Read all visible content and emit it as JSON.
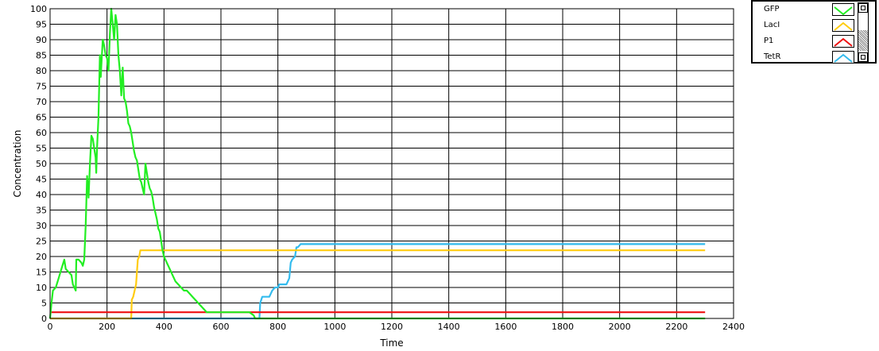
{
  "chart_data": {
    "type": "line",
    "xlabel": "Time",
    "ylabel": "Concentration",
    "xlim": [
      0,
      2400
    ],
    "ylim": [
      0,
      100
    ],
    "xticks": [
      0,
      200,
      400,
      600,
      800,
      1000,
      1200,
      1400,
      1600,
      1800,
      2000,
      2200,
      2400
    ],
    "yticks": [
      0,
      5,
      10,
      15,
      20,
      25,
      30,
      35,
      40,
      45,
      50,
      55,
      60,
      65,
      70,
      75,
      80,
      85,
      90,
      95,
      100
    ],
    "grid": true,
    "legend_position": "top-right",
    "series": [
      {
        "name": "GFP",
        "color": "#22ee22",
        "points": [
          [
            0,
            0
          ],
          [
            5,
            5
          ],
          [
            10,
            9
          ],
          [
            20,
            10
          ],
          [
            30,
            13
          ],
          [
            40,
            16
          ],
          [
            50,
            19
          ],
          [
            55,
            16
          ],
          [
            65,
            15
          ],
          [
            75,
            14
          ],
          [
            80,
            11
          ],
          [
            85,
            10
          ],
          [
            90,
            9
          ],
          [
            92,
            19
          ],
          [
            100,
            19
          ],
          [
            110,
            18
          ],
          [
            115,
            17
          ],
          [
            120,
            19
          ],
          [
            125,
            30
          ],
          [
            130,
            46
          ],
          [
            135,
            39
          ],
          [
            140,
            50
          ],
          [
            145,
            59
          ],
          [
            150,
            58
          ],
          [
            155,
            55
          ],
          [
            160,
            52
          ],
          [
            162,
            47
          ],
          [
            165,
            55
          ],
          [
            170,
            65
          ],
          [
            175,
            85
          ],
          [
            178,
            78
          ],
          [
            182,
            85
          ],
          [
            185,
            90
          ],
          [
            190,
            88
          ],
          [
            195,
            85
          ],
          [
            200,
            84
          ],
          [
            205,
            80
          ],
          [
            210,
            92
          ],
          [
            215,
            100
          ],
          [
            220,
            95
          ],
          [
            225,
            90
          ],
          [
            230,
            98
          ],
          [
            235,
            95
          ],
          [
            240,
            85
          ],
          [
            245,
            80
          ],
          [
            250,
            72
          ],
          [
            255,
            81
          ],
          [
            258,
            75
          ],
          [
            260,
            71
          ],
          [
            265,
            70
          ],
          [
            270,
            67
          ],
          [
            275,
            63
          ],
          [
            280,
            62
          ],
          [
            285,
            60
          ],
          [
            290,
            57
          ],
          [
            295,
            54
          ],
          [
            300,
            52
          ],
          [
            305,
            51
          ],
          [
            310,
            48
          ],
          [
            315,
            45
          ],
          [
            320,
            44
          ],
          [
            325,
            42
          ],
          [
            330,
            40
          ],
          [
            335,
            50
          ],
          [
            340,
            47
          ],
          [
            345,
            44
          ],
          [
            350,
            42
          ],
          [
            355,
            41
          ],
          [
            360,
            39
          ],
          [
            365,
            36
          ],
          [
            370,
            34
          ],
          [
            375,
            32
          ],
          [
            380,
            29
          ],
          [
            385,
            28
          ],
          [
            390,
            25
          ],
          [
            395,
            22
          ],
          [
            400,
            20
          ],
          [
            410,
            18
          ],
          [
            420,
            16
          ],
          [
            430,
            14
          ],
          [
            440,
            12
          ],
          [
            450,
            11
          ],
          [
            460,
            10
          ],
          [
            470,
            9
          ],
          [
            480,
            9
          ],
          [
            490,
            8
          ],
          [
            500,
            7
          ],
          [
            510,
            6
          ],
          [
            520,
            5
          ],
          [
            530,
            4
          ],
          [
            540,
            3
          ],
          [
            550,
            2
          ],
          [
            580,
            2
          ],
          [
            620,
            2
          ],
          [
            660,
            2
          ],
          [
            700,
            2
          ],
          [
            715,
            1
          ],
          [
            720,
            0
          ],
          [
            2300,
            0
          ]
        ]
      },
      {
        "name": "LacI",
        "color": "#ffcc11",
        "points": [
          [
            0,
            0
          ],
          [
            285,
            0
          ],
          [
            287,
            6
          ],
          [
            292,
            7
          ],
          [
            297,
            9
          ],
          [
            302,
            11
          ],
          [
            305,
            15
          ],
          [
            308,
            19
          ],
          [
            313,
            20
          ],
          [
            317,
            22
          ],
          [
            2300,
            22
          ]
        ]
      },
      {
        "name": "P1",
        "color": "#ee1111",
        "points": [
          [
            0,
            2
          ],
          [
            2300,
            2
          ]
        ]
      },
      {
        "name": "TetR",
        "color": "#33bbee",
        "points": [
          [
            0,
            0
          ],
          [
            735,
            0
          ],
          [
            738,
            5
          ],
          [
            745,
            7
          ],
          [
            770,
            7
          ],
          [
            775,
            8
          ],
          [
            780,
            9
          ],
          [
            790,
            10
          ],
          [
            800,
            10
          ],
          [
            805,
            11
          ],
          [
            830,
            11
          ],
          [
            840,
            13
          ],
          [
            845,
            18
          ],
          [
            850,
            19
          ],
          [
            860,
            20
          ],
          [
            865,
            23
          ],
          [
            870,
            23
          ],
          [
            880,
            24
          ],
          [
            2300,
            24
          ]
        ]
      }
    ]
  },
  "legend": {
    "items": [
      {
        "label": "GFP",
        "color": "#22ee22"
      },
      {
        "label": "LacI",
        "color": "#ffcc11"
      },
      {
        "label": "P1",
        "color": "#ee1111"
      },
      {
        "label": "TetR",
        "color": "#33bbee"
      }
    ]
  }
}
